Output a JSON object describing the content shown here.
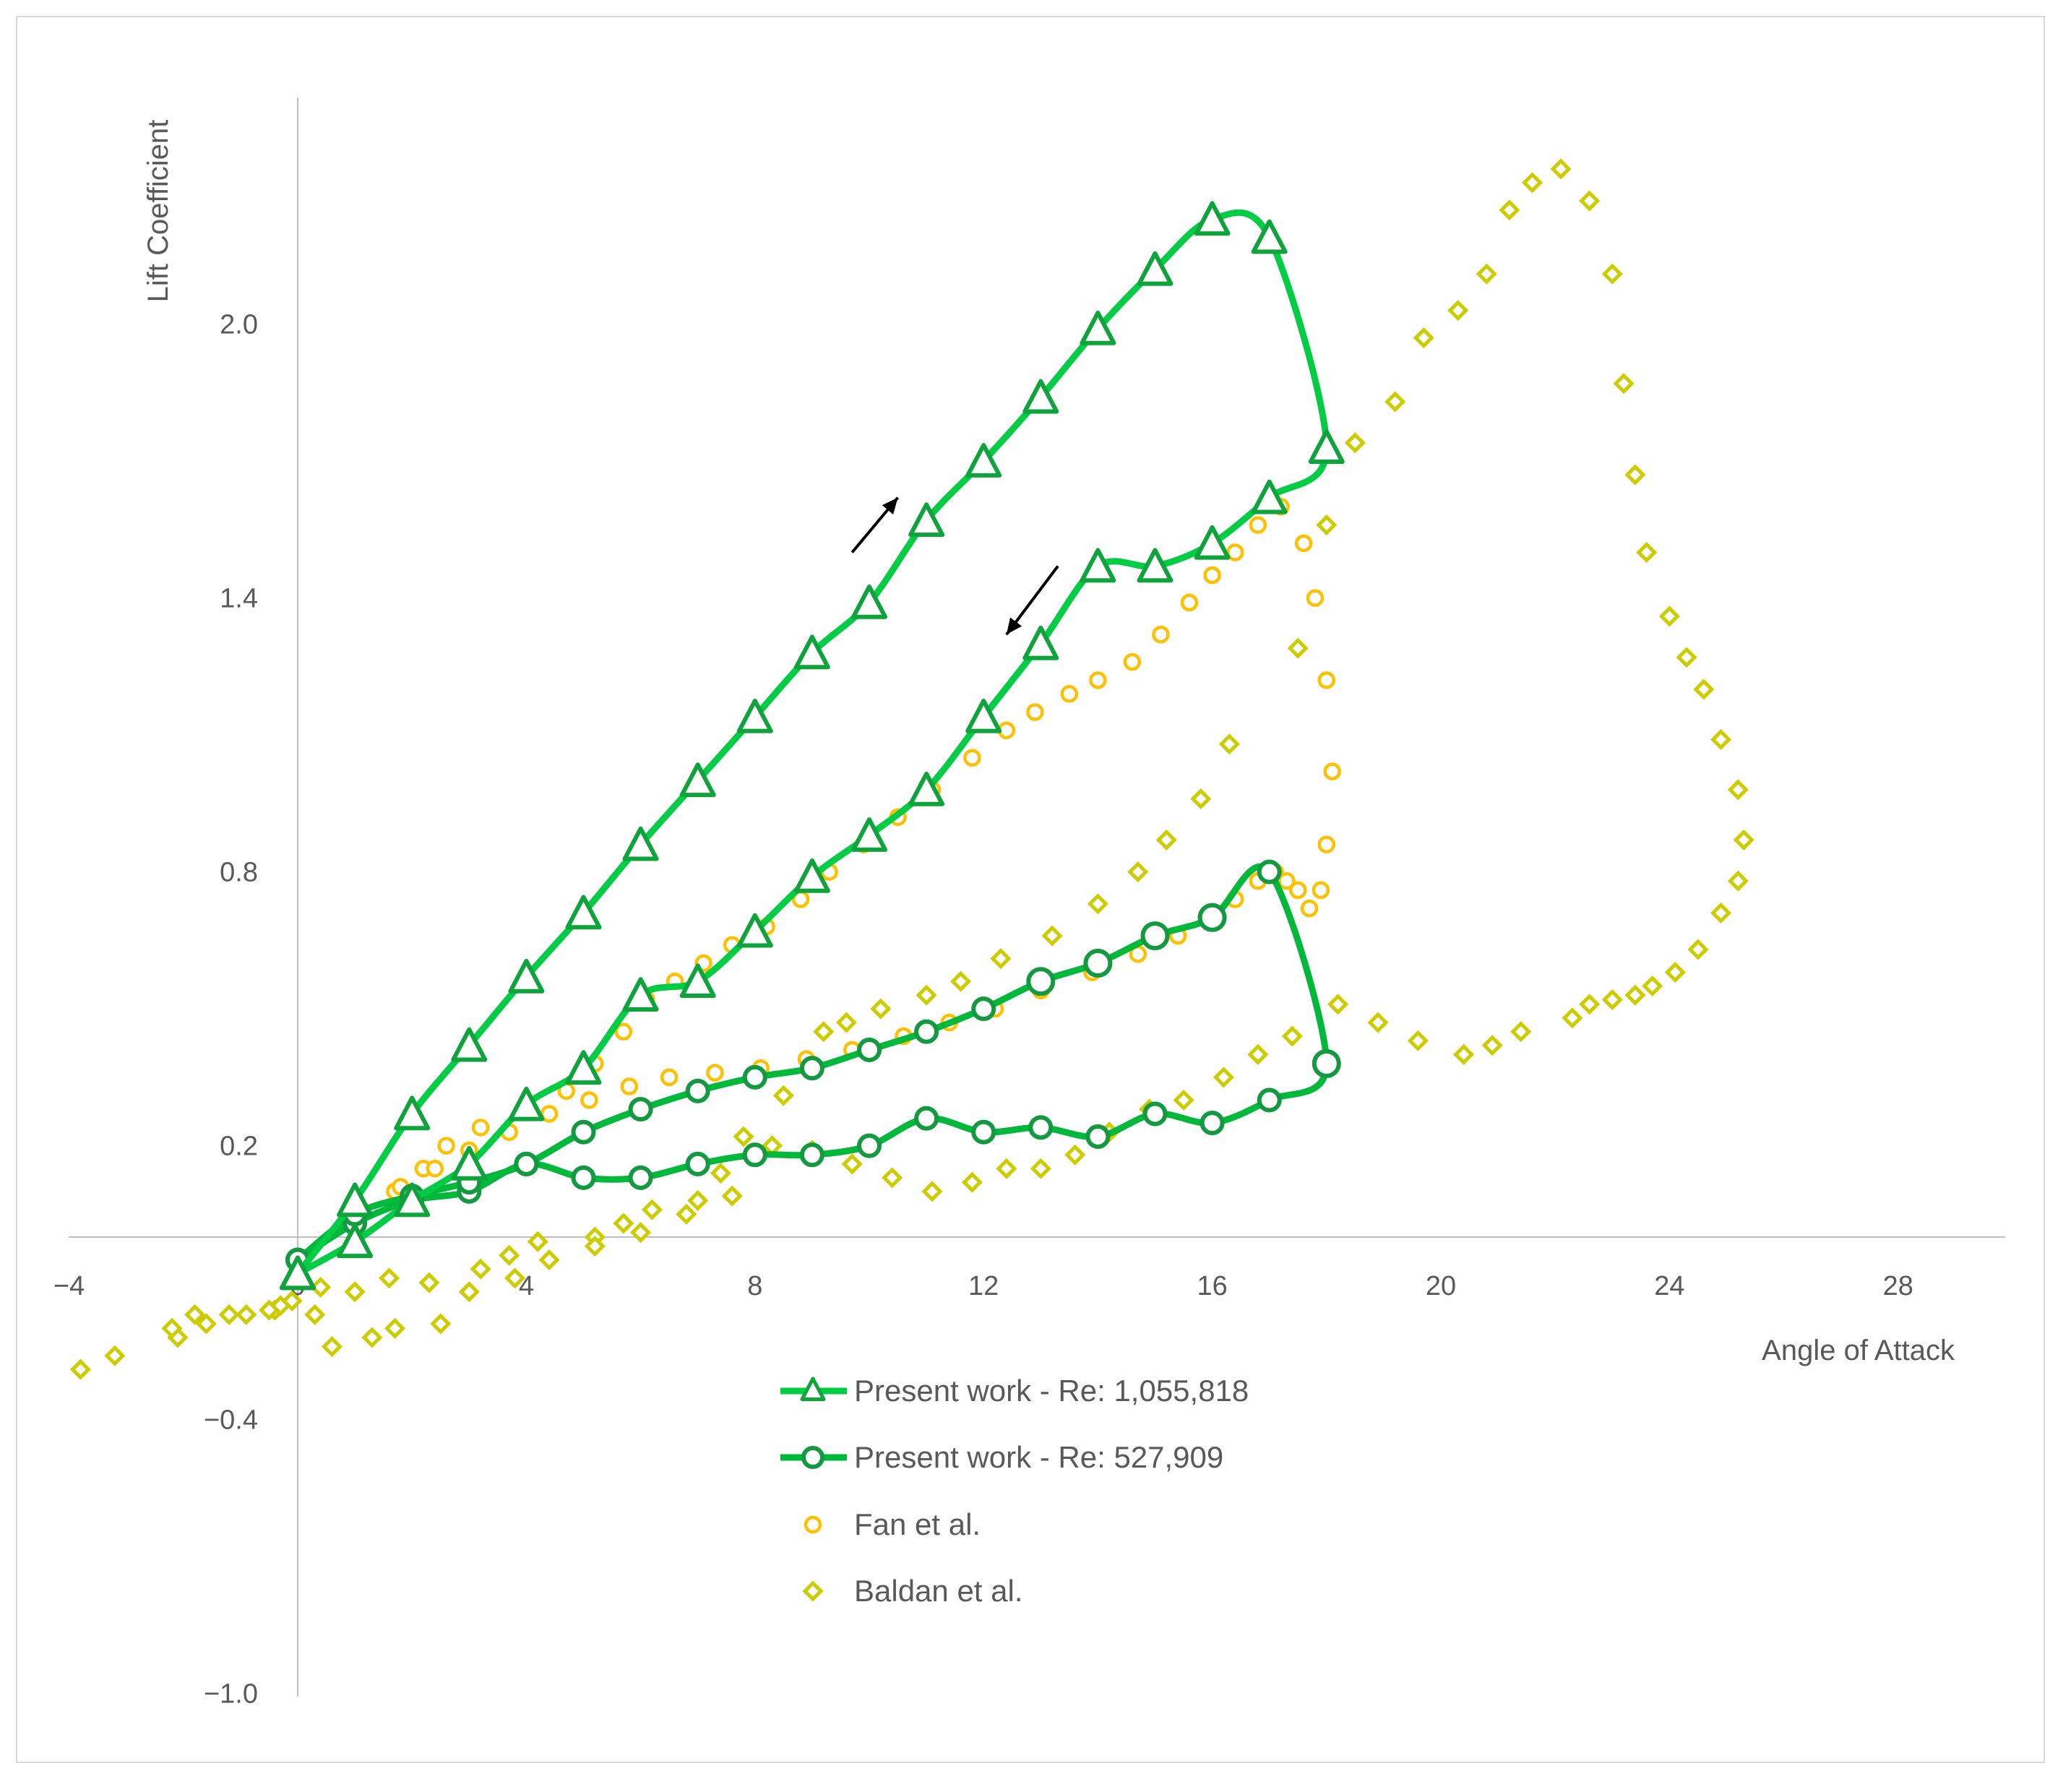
{
  "chart_data": {
    "type": "scatter",
    "title": "",
    "xlabel": "Angle of Attack",
    "ylabel": "Lift Coefficient",
    "xlim": [
      -4,
      30
    ],
    "ylim": [
      -1.0,
      2.5
    ],
    "xticks": [
      -4,
      0,
      4,
      8,
      12,
      16,
      20,
      24,
      28
    ],
    "yticks": [
      -1.0,
      -0.4,
      0.2,
      0.8,
      1.4,
      2.0
    ],
    "xtick_labels": [
      "−4",
      "0",
      "4",
      "8",
      "12",
      "16",
      "20",
      "24",
      "28"
    ],
    "ytick_labels": [
      "−1.0",
      "−0.4",
      "0.2",
      "0.8",
      "1.4",
      "2.0"
    ],
    "grid": false,
    "legend_position": "bottom-center",
    "colors": {
      "re1": "#00cc44",
      "re1_marker": "#0fa33c",
      "re2": "#00b83a",
      "re2_marker": "#139940",
      "fan": "#ffc000",
      "baldan": "#cccc00",
      "axis": "#bfbfbf",
      "arrow": "#000000"
    },
    "annotations": [
      {
        "type": "arrow",
        "direction": "up",
        "from": [
          9.7,
          1.5
        ],
        "to": [
          10.5,
          1.62
        ]
      },
      {
        "type": "arrow",
        "direction": "down",
        "from": [
          13.3,
          1.47
        ],
        "to": [
          12.4,
          1.32
        ]
      }
    ],
    "series": [
      {
        "name": "Present work - Re: 1,055,818",
        "style": "line-triangle",
        "x": [
          0,
          1,
          2,
          3,
          4,
          5,
          6,
          7,
          8,
          9,
          10,
          11,
          12,
          13,
          14,
          15,
          16,
          17,
          18,
          17,
          16,
          15,
          14,
          13,
          12,
          11,
          10,
          9,
          8,
          7,
          6,
          5,
          4,
          3,
          2,
          1,
          0
        ],
        "y": [
          -0.08,
          0.08,
          0.27,
          0.42,
          0.57,
          0.71,
          0.86,
          1.0,
          1.14,
          1.28,
          1.39,
          1.57,
          1.7,
          1.84,
          1.99,
          2.12,
          2.23,
          2.19,
          1.73,
          1.62,
          1.52,
          1.47,
          1.47,
          1.3,
          1.14,
          0.98,
          0.88,
          0.79,
          0.67,
          0.56,
          0.53,
          0.37,
          0.29,
          0.16,
          0.08,
          -0.01,
          -0.08
        ]
      },
      {
        "name": "Present work - Re: 527,909",
        "style": "line-circle",
        "x": [
          0,
          1,
          2,
          3,
          4,
          5,
          6,
          7,
          8,
          9,
          10,
          11,
          12,
          13,
          14,
          15,
          16,
          17,
          18,
          17,
          16,
          15,
          14,
          13,
          12,
          11,
          10,
          9,
          8,
          7,
          6,
          5,
          4,
          3,
          2,
          1,
          0
        ],
        "y": [
          -0.05,
          0.03,
          0.08,
          0.1,
          0.16,
          0.13,
          0.13,
          0.16,
          0.18,
          0.18,
          0.2,
          0.26,
          0.23,
          0.24,
          0.22,
          0.27,
          0.25,
          0.3,
          0.38,
          0.8,
          0.7,
          0.66,
          0.6,
          0.56,
          0.5,
          0.45,
          0.41,
          0.37,
          0.35,
          0.32,
          0.28,
          0.23,
          0.16,
          0.12,
          0.09,
          0.05,
          -0.05
        ]
      },
      {
        "name": "Fan et al.",
        "style": "open-circle",
        "x": [
          1.7,
          2.2,
          2.6,
          3.2,
          4.0,
          4.7,
          5.2,
          5.7,
          6.1,
          6.6,
          7.1,
          7.6,
          8.2,
          8.8,
          9.3,
          9.9,
          10.5,
          11.1,
          11.8,
          12.4,
          12.9,
          13.5,
          14.0,
          14.6,
          15.1,
          15.6,
          16.0,
          16.4,
          16.8,
          17.2,
          17.6,
          17.8,
          18.0,
          18.1,
          18.0,
          17.9,
          17.7,
          17.5,
          17.3,
          17.1,
          16.8,
          16.4,
          16.0,
          15.4,
          14.7,
          13.9,
          13.0,
          12.2,
          11.4,
          10.6,
          9.7,
          8.9,
          8.1,
          7.3,
          6.5,
          5.8,
          5.1,
          4.4,
          3.7,
          3.0,
          2.4,
          1.8
        ],
        "y": [
          0.1,
          0.15,
          0.2,
          0.24,
          0.28,
          0.32,
          0.38,
          0.45,
          0.52,
          0.56,
          0.6,
          0.64,
          0.68,
          0.74,
          0.8,
          0.86,
          0.92,
          0.98,
          1.05,
          1.11,
          1.15,
          1.19,
          1.22,
          1.26,
          1.32,
          1.39,
          1.45,
          1.5,
          1.56,
          1.6,
          1.52,
          1.4,
          1.22,
          1.02,
          0.86,
          0.76,
          0.72,
          0.76,
          0.78,
          0.8,
          0.78,
          0.74,
          0.7,
          0.66,
          0.62,
          0.58,
          0.54,
          0.5,
          0.47,
          0.44,
          0.41,
          0.39,
          0.37,
          0.36,
          0.35,
          0.33,
          0.3,
          0.27,
          0.23,
          0.19,
          0.15,
          0.11
        ]
      },
      {
        "name": "Baldan et al.",
        "style": "open-diamond",
        "x": [
          -3.8,
          -3.2,
          -2.1,
          -1.8,
          -1.2,
          -0.4,
          -0.3,
          0.3,
          0.6,
          1.3,
          1.7,
          2.5,
          3.2,
          3.7,
          4.2,
          5.2,
          5.7,
          6.2,
          7.0,
          7.4,
          7.8,
          8.5,
          9.2,
          9.6,
          10.2,
          11.0,
          11.6,
          12.3,
          13.2,
          14.0,
          14.7,
          15.2,
          15.8,
          16.3,
          17.5,
          18.0,
          18.5,
          19.2,
          19.7,
          20.3,
          20.8,
          21.2,
          21.6,
          22.1,
          22.6,
          23.0,
          23.2,
          23.4,
          23.6,
          24.0,
          24.3,
          24.6,
          24.9,
          25.2,
          25.3,
          25.2,
          24.9,
          24.5,
          24.1,
          23.7,
          23.4,
          23.0,
          22.6,
          22.3,
          21.4,
          20.9,
          20.4,
          19.6,
          18.9,
          18.2,
          17.4,
          16.8,
          16.2,
          15.5,
          14.9,
          14.2,
          13.6,
          13.0,
          12.4,
          11.8,
          11.1,
          10.4,
          9.7,
          9.0,
          8.3,
          7.6,
          6.8,
          6.0,
          5.2,
          4.4,
          3.8,
          3.0,
          2.3,
          1.6,
          1.0,
          0.4,
          -0.1,
          -0.5,
          -0.9,
          -1.6,
          -2.2
        ],
        "y": [
          -0.29,
          -0.26,
          -0.22,
          -0.17,
          -0.17,
          -0.16,
          -0.15,
          -0.17,
          -0.24,
          -0.22,
          -0.2,
          -0.19,
          -0.07,
          -0.04,
          -0.01,
          0.0,
          0.03,
          0.06,
          0.08,
          0.14,
          0.22,
          0.31,
          0.45,
          0.47,
          0.5,
          0.53,
          0.56,
          0.61,
          0.66,
          0.73,
          0.8,
          0.87,
          0.96,
          1.08,
          1.29,
          1.56,
          1.74,
          1.83,
          1.97,
          2.03,
          2.11,
          2.25,
          2.31,
          2.34,
          2.27,
          2.11,
          1.87,
          1.67,
          1.5,
          1.36,
          1.27,
          1.2,
          1.09,
          0.98,
          0.87,
          0.78,
          0.71,
          0.63,
          0.58,
          0.55,
          0.53,
          0.52,
          0.51,
          0.48,
          0.45,
          0.42,
          0.4,
          0.43,
          0.47,
          0.51,
          0.44,
          0.4,
          0.35,
          0.3,
          0.28,
          0.23,
          0.18,
          0.15,
          0.15,
          0.12,
          0.1,
          0.13,
          0.16,
          0.19,
          0.2,
          0.09,
          0.05,
          0.01,
          -0.02,
          -0.05,
          -0.09,
          -0.12,
          -0.1,
          -0.09,
          -0.12,
          -0.11,
          -0.14,
          -0.16,
          -0.17,
          -0.19,
          -0.2
        ]
      }
    ]
  }
}
